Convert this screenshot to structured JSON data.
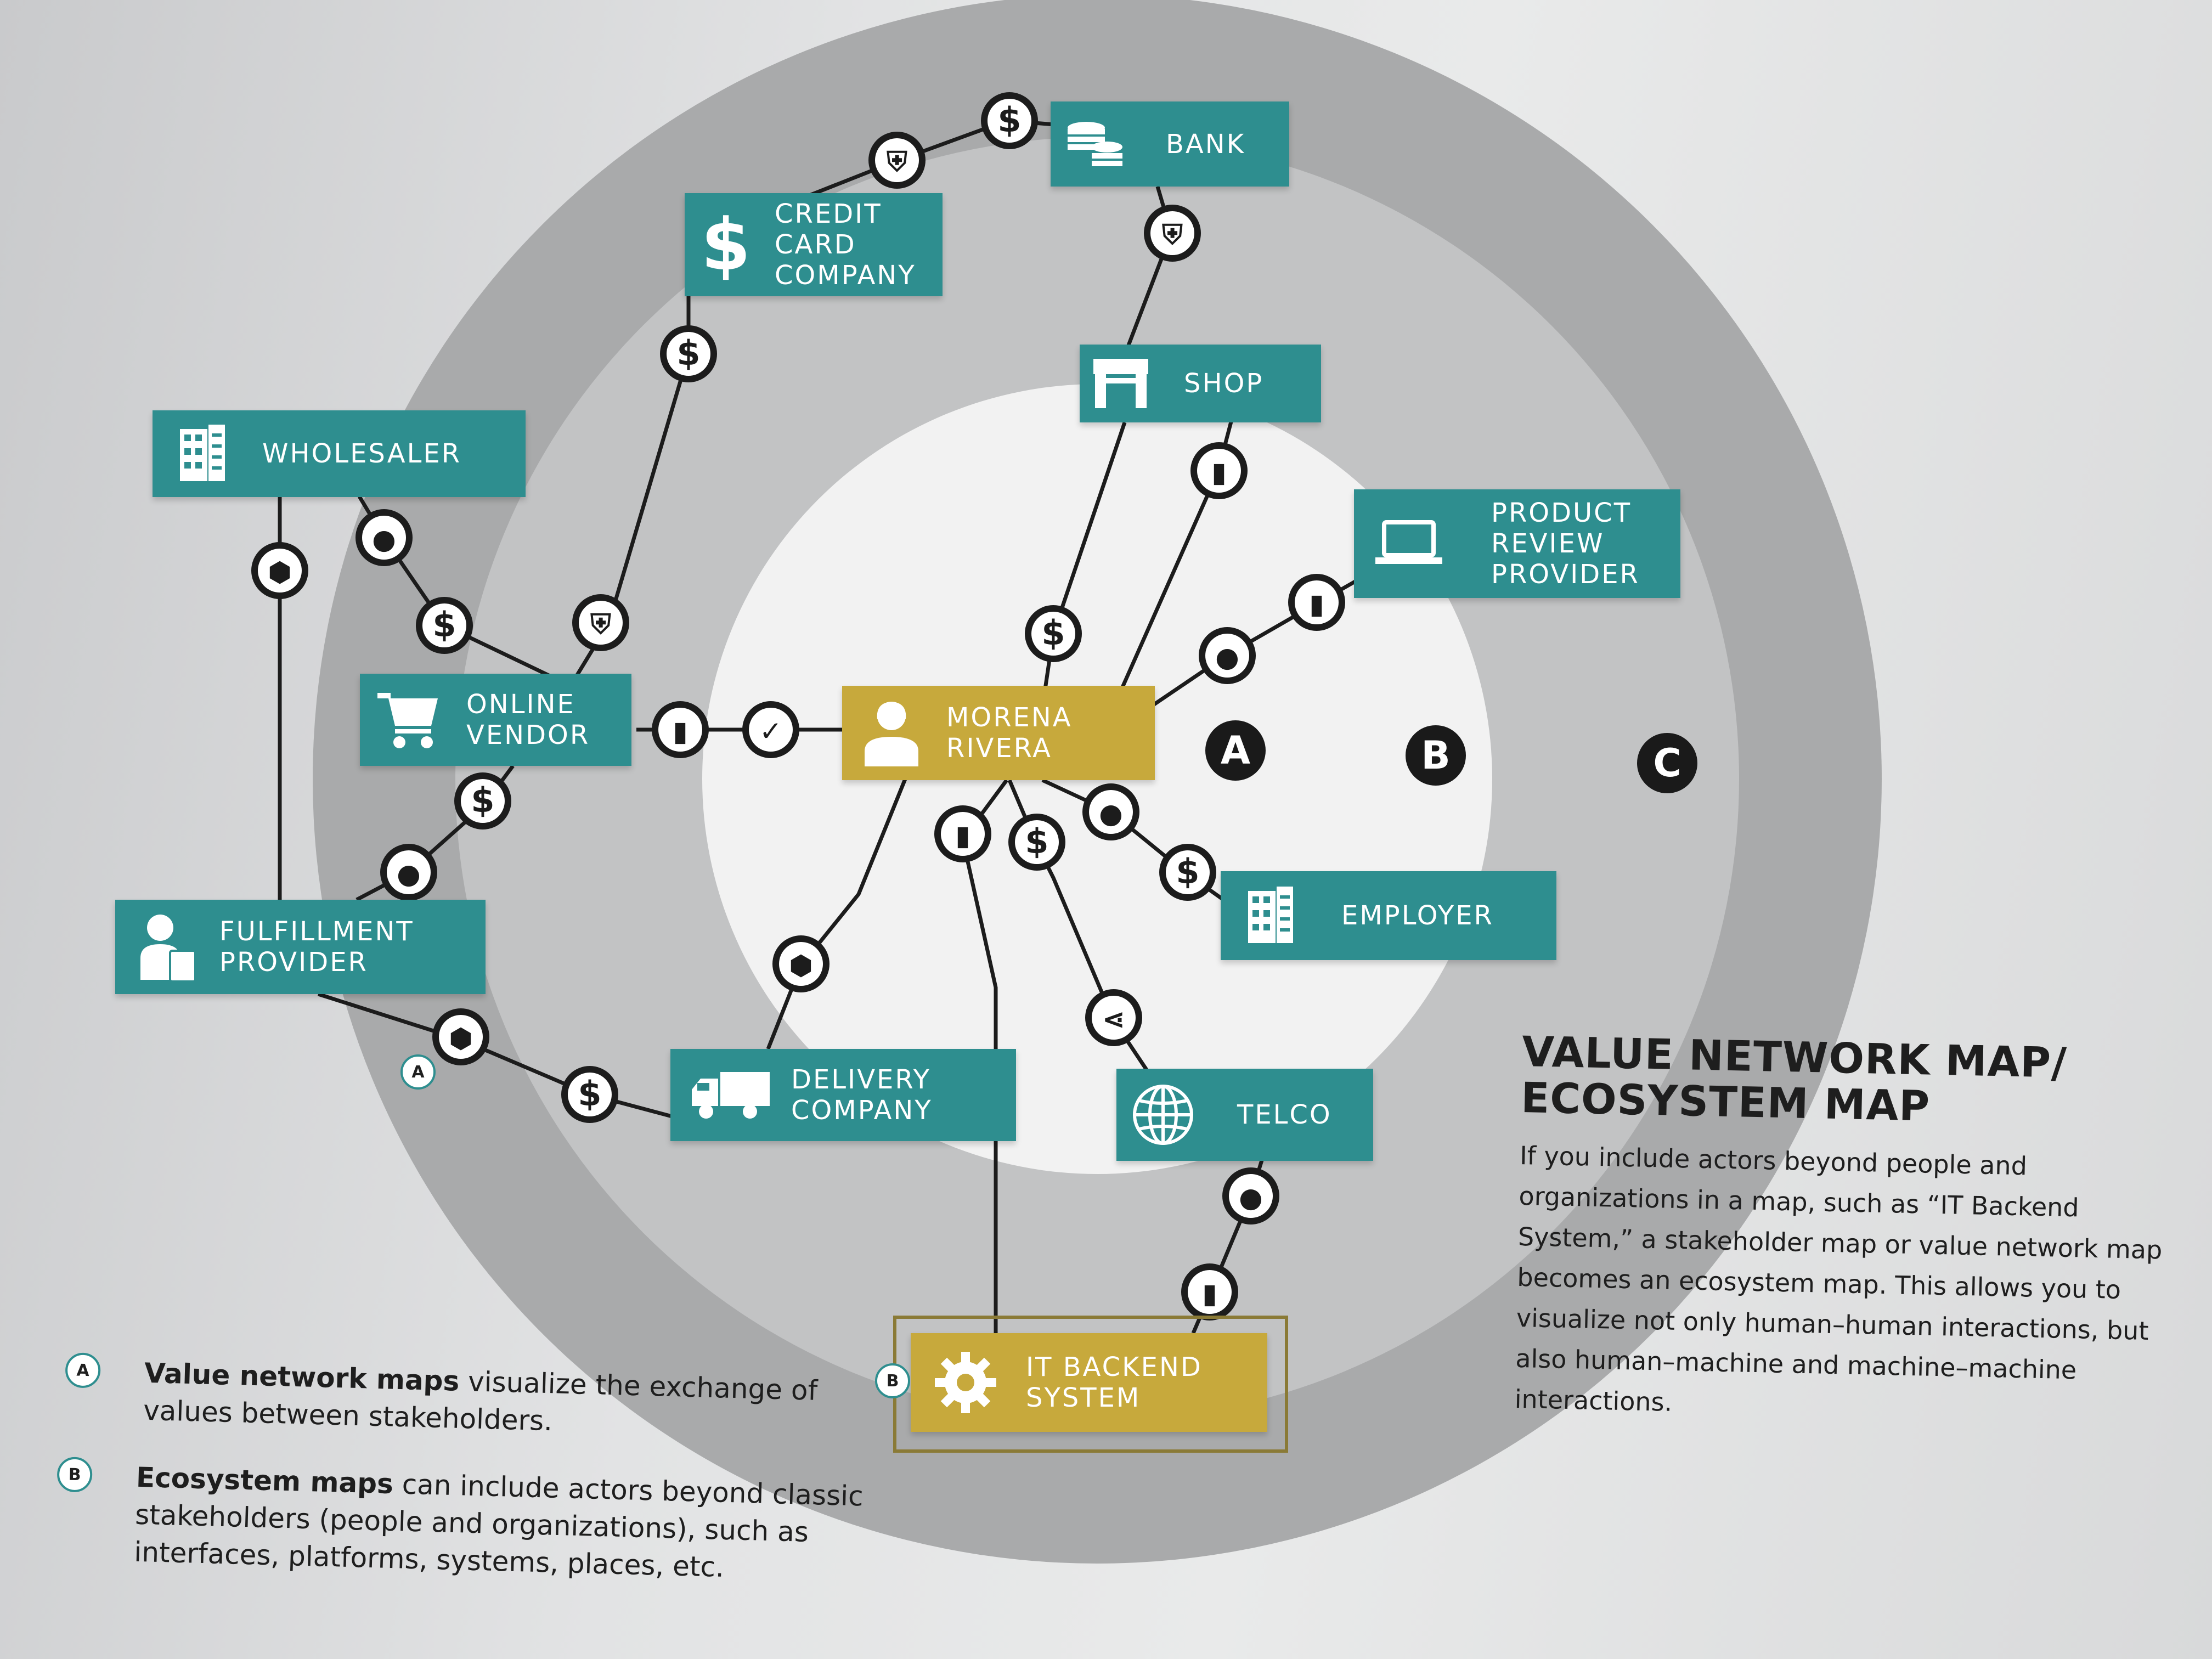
{
  "diagram": {
    "center": {
      "label": "MORENA\nRIVERA"
    },
    "nodes": [
      {
        "key": "bank",
        "label": "BANK",
        "icon": "coins-icon"
      },
      {
        "key": "credit_card",
        "label": "CREDIT\nCARD\nCOMPANY",
        "icon": "dollar-icon"
      },
      {
        "key": "shop",
        "label": "SHOP",
        "icon": "storefront-icon"
      },
      {
        "key": "product_review",
        "label": "PRODUCT\nREVIEW\nPROVIDER",
        "icon": "laptop-icon"
      },
      {
        "key": "wholesaler",
        "label": "WHOLESALER",
        "icon": "building-icon"
      },
      {
        "key": "online_vendor",
        "label": "ONLINE\nVENDOR",
        "icon": "shopping-cart-icon"
      },
      {
        "key": "fulfillment",
        "label": "FULFILLMENT\nPROVIDER",
        "icon": "worker-clipboard-icon"
      },
      {
        "key": "employer",
        "label": "EMPLOYER",
        "icon": "building-icon"
      },
      {
        "key": "delivery",
        "label": "DELIVERY\nCOMPANY",
        "icon": "truck-icon"
      },
      {
        "key": "telco",
        "label": "TELCO",
        "icon": "globe-icon"
      },
      {
        "key": "it_backend",
        "label": "IT BACKEND\nSYSTEM",
        "icon": "gear-icon"
      }
    ],
    "ring_labels": [
      "A",
      "B",
      "C"
    ],
    "markers": [
      "A",
      "B"
    ]
  },
  "sidebar": {
    "title": "VALUE NETWORK MAP/\nECOSYSTEM MAP",
    "body": "If you include actors beyond people and organizations in a map, such as “IT Backend System,” a stakeholder map or value network map becomes an ecosystem map. This allows you to visualize not only human–human interactions, but also human–machine and machine–machine interactions."
  },
  "legend": [
    {
      "marker": "A",
      "bold": "Value network maps",
      "text": " visualize the exchange of values between stakeholders."
    },
    {
      "marker": "B",
      "bold": "Ecosystem maps",
      "text": " can include actors beyond classic stakeholders (people and organizations), such as interfaces, platforms, systems, places, etc."
    }
  ],
  "colors": {
    "teal": "#2e8e8f",
    "gold": "#c7a93c",
    "ring_outer": "#a9aaab",
    "ring_middle": "#c2c3c4",
    "ring_inner": "#f2f2f2"
  }
}
